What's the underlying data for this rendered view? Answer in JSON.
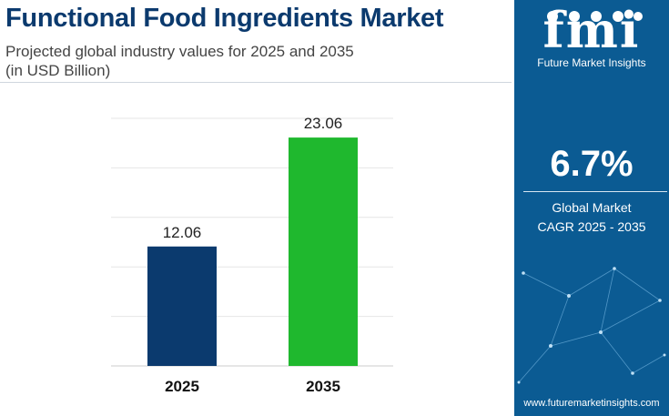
{
  "header": {
    "title": "Functional Food Ingredients Market",
    "subtitle_line1": "Projected global industry values for 2025 and 2035",
    "subtitle_line2": "(in USD Billion)"
  },
  "sidebar": {
    "logo_text": "fmi",
    "logo_subtitle": "Future Market Insights",
    "cagr_value": "6.7%",
    "cagr_label_line1": "Global Market",
    "cagr_label_line2": "CAGR 2025 - 2035",
    "website": "www.futuremarketinsights.com"
  },
  "colors": {
    "title": "#0b3a6e",
    "bar_2025": "#0b3a6e",
    "bar_2035": "#1fb82e",
    "sidebar_bg": "#0b5b93"
  },
  "chart_data": {
    "type": "bar",
    "categories": [
      "2025",
      "2035"
    ],
    "values": [
      12.06,
      23.06
    ],
    "data_labels": [
      "12.06",
      "23.06"
    ],
    "bar_colors": [
      "#0b3a6e",
      "#1fb82e"
    ],
    "ylim": [
      0,
      25
    ],
    "grid": true,
    "title": "Functional Food Ingredients Market",
    "xlabel": "",
    "ylabel": ""
  }
}
